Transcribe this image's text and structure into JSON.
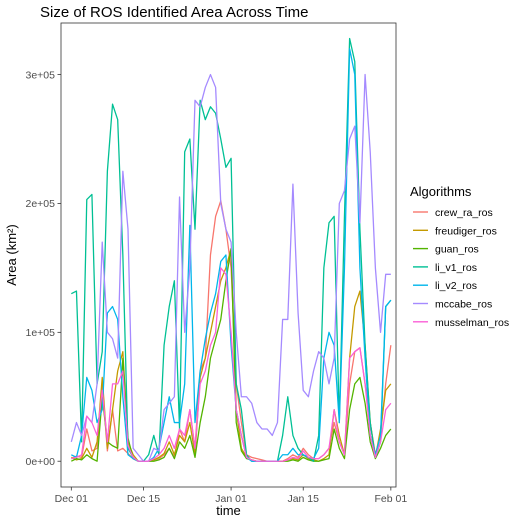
{
  "chart_data": {
    "type": "line",
    "title": "Size of ROS Identified Area Across Time",
    "xlabel": "time",
    "ylabel": "Area (km²)",
    "xlim": [
      "2020-11-29",
      "2021-02-02"
    ],
    "ylim": [
      -20000,
      340000
    ],
    "x_ticks": [
      "2020-12-01",
      "2020-12-15",
      "2021-01-01",
      "2021-01-15",
      "2021-02-01"
    ],
    "x_tick_labels": [
      "Dec 01",
      "Dec 15",
      "Jan 01",
      "Jan 15",
      "Feb 01"
    ],
    "y_ticks": [
      0,
      100000,
      200000,
      300000
    ],
    "y_tick_labels": [
      "0e+00",
      "1e+05",
      "2e+05",
      "3e+05"
    ],
    "grid": false,
    "legend": {
      "title": "Algorithms",
      "placement": "right"
    },
    "x": [
      "2020-12-01",
      "2020-12-02",
      "2020-12-03",
      "2020-12-04",
      "2020-12-05",
      "2020-12-06",
      "2020-12-07",
      "2020-12-08",
      "2020-12-09",
      "2020-12-10",
      "2020-12-11",
      "2020-12-12",
      "2020-12-13",
      "2020-12-14",
      "2020-12-15",
      "2020-12-16",
      "2020-12-17",
      "2020-12-18",
      "2020-12-19",
      "2020-12-20",
      "2020-12-21",
      "2020-12-22",
      "2020-12-23",
      "2020-12-24",
      "2020-12-25",
      "2020-12-26",
      "2020-12-27",
      "2020-12-28",
      "2020-12-29",
      "2020-12-30",
      "2020-12-31",
      "2021-01-01",
      "2021-01-02",
      "2021-01-03",
      "2021-01-04",
      "2021-01-05",
      "2021-01-06",
      "2021-01-07",
      "2021-01-08",
      "2021-01-09",
      "2021-01-10",
      "2021-01-11",
      "2021-01-12",
      "2021-01-13",
      "2021-01-14",
      "2021-01-15",
      "2021-01-16",
      "2021-01-17",
      "2021-01-18",
      "2021-01-19",
      "2021-01-20",
      "2021-01-21",
      "2021-01-22",
      "2021-01-23",
      "2021-01-24",
      "2021-01-25",
      "2021-01-26",
      "2021-01-27",
      "2021-01-28",
      "2021-01-29",
      "2021-01-30",
      "2021-01-31",
      "2021-02-01"
    ],
    "series": [
      {
        "name": "crew_ra_ros",
        "color": "#F8766D",
        "values": [
          2000,
          4000,
          3000,
          25000,
          8000,
          10000,
          60000,
          8000,
          40000,
          8000,
          10000,
          6000,
          2000,
          0,
          0,
          0,
          1000,
          2000,
          5000,
          10000,
          3000,
          25000,
          15000,
          40000,
          10000,
          70000,
          80000,
          160000,
          190000,
          202000,
          180000,
          150000,
          60000,
          30000,
          5000,
          3000,
          2000,
          1000,
          0,
          0,
          0,
          0,
          2000,
          5000,
          3000,
          10000,
          5000,
          2000,
          2000,
          5000,
          10000,
          30000,
          15000,
          5000,
          60000,
          85000,
          88000,
          60000,
          30000,
          5000,
          20000,
          60000,
          90000
        ]
      },
      {
        "name": "freudiger_ros",
        "color": "#C49A00",
        "values": [
          3000,
          1000,
          2000,
          10000,
          3000,
          15000,
          65000,
          10000,
          40000,
          70000,
          85000,
          15000,
          5000,
          0,
          0,
          0,
          1000,
          3000,
          6000,
          15000,
          5000,
          20000,
          15000,
          30000,
          5000,
          65000,
          80000,
          100000,
          120000,
          140000,
          150000,
          165000,
          40000,
          10000,
          3000,
          1000,
          0,
          0,
          0,
          0,
          0,
          0,
          1000,
          2000,
          1000,
          5000,
          2000,
          1000,
          0,
          2000,
          5000,
          40000,
          20000,
          5000,
          80000,
          120000,
          132000,
          90000,
          30000,
          3000,
          25000,
          55000,
          60000
        ]
      },
      {
        "name": "guan_ros",
        "color": "#53B400",
        "values": [
          0,
          2000,
          1000,
          5000,
          2000,
          0,
          50000,
          15000,
          12000,
          10000,
          80000,
          18000,
          2000,
          0,
          0,
          0,
          0,
          1000,
          3000,
          10000,
          2000,
          15000,
          10000,
          20000,
          3000,
          30000,
          50000,
          80000,
          95000,
          110000,
          140000,
          165000,
          30000,
          8000,
          2000,
          1000,
          0,
          0,
          0,
          0,
          0,
          0,
          0,
          1000,
          0,
          3000,
          1000,
          0,
          0,
          1000,
          2000,
          25000,
          10000,
          2000,
          40000,
          60000,
          65000,
          45000,
          15000,
          2000,
          10000,
          20000,
          25000
        ]
      },
      {
        "name": "li_v1_ros",
        "color": "#00C094",
        "values": [
          130000,
          132000,
          15000,
          203000,
          207000,
          60000,
          85000,
          225000,
          277000,
          265000,
          160000,
          10000,
          3000,
          0,
          0,
          5000,
          20000,
          5000,
          90000,
          120000,
          140000,
          25000,
          240000,
          250000,
          180000,
          280000,
          265000,
          275000,
          270000,
          250000,
          228000,
          235000,
          60000,
          40000,
          5000,
          0,
          0,
          0,
          0,
          0,
          0,
          20000,
          50000,
          20000,
          10000,
          5000,
          3000,
          0,
          20000,
          150000,
          185000,
          190000,
          30000,
          190000,
          328000,
          310000,
          180000,
          90000,
          30000,
          3000,
          15000,
          120000,
          125000
        ]
      },
      {
        "name": "li_v2_ros",
        "color": "#00B6EB",
        "values": [
          5000,
          3000,
          20000,
          65000,
          55000,
          30000,
          40000,
          115000,
          120000,
          110000,
          50000,
          5000,
          2000,
          0,
          0,
          0,
          3000,
          10000,
          30000,
          50000,
          30000,
          30000,
          60000,
          183000,
          30000,
          70000,
          95000,
          115000,
          130000,
          155000,
          160000,
          90000,
          40000,
          20000,
          3000,
          0,
          0,
          0,
          0,
          0,
          0,
          5000,
          5000,
          10000,
          5000,
          5000,
          3000,
          2000,
          10000,
          80000,
          100000,
          90000,
          30000,
          150000,
          320000,
          300000,
          150000,
          80000,
          20000,
          5000,
          20000,
          120000,
          125000
        ]
      },
      {
        "name": "mccabe_ros",
        "color": "#A58AFF",
        "values": [
          15000,
          30000,
          20000,
          35000,
          30000,
          60000,
          170000,
          100000,
          95000,
          80000,
          225000,
          180000,
          10000,
          5000,
          0,
          0,
          10000,
          8000,
          40000,
          45000,
          50000,
          205000,
          100000,
          150000,
          280000,
          275000,
          290000,
          300000,
          290000,
          200000,
          180000,
          170000,
          100000,
          50000,
          50000,
          45000,
          30000,
          25000,
          25000,
          20000,
          30000,
          110000,
          110000,
          215000,
          115000,
          55000,
          50000,
          70000,
          85000,
          80000,
          60000,
          80000,
          200000,
          210000,
          250000,
          260000,
          185000,
          300000,
          240000,
          150000,
          100000,
          145000,
          145000
        ]
      },
      {
        "name": "musselman_ros",
        "color": "#FB61D7",
        "values": [
          2000,
          3000,
          5000,
          35000,
          30000,
          20000,
          55000,
          15000,
          60000,
          60000,
          70000,
          12000,
          3000,
          0,
          0,
          0,
          2000,
          5000,
          10000,
          20000,
          10000,
          25000,
          20000,
          40000,
          10000,
          60000,
          70000,
          90000,
          100000,
          150000,
          145000,
          100000,
          40000,
          20000,
          3000,
          1000,
          0,
          0,
          0,
          0,
          0,
          0,
          1000,
          3000,
          2000,
          8000,
          3000,
          2000,
          2000,
          5000,
          10000,
          40000,
          15000,
          5000,
          80000,
          85000,
          88000,
          60000,
          20000,
          3000,
          15000,
          40000,
          45000
        ]
      }
    ]
  }
}
